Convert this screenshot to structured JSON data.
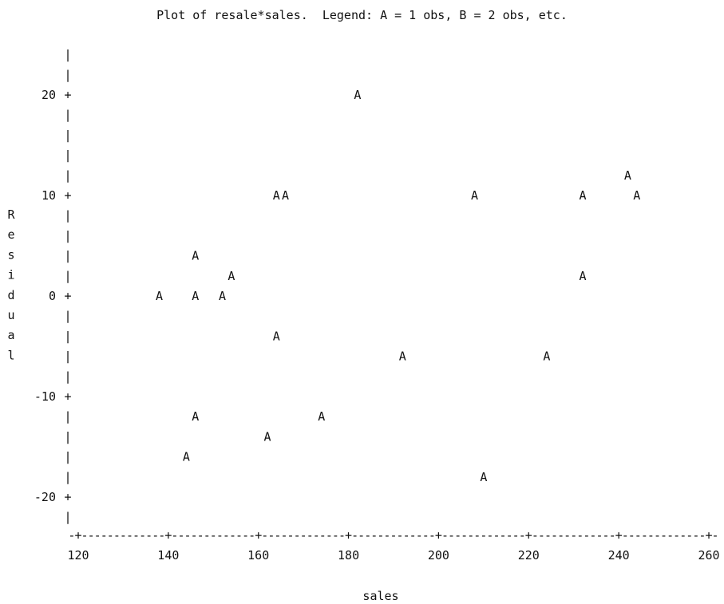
{
  "chart_data": {
    "type": "scatter",
    "title": "Plot of resale*sales.  Legend: A = 1 obs, B = 2 obs, etc.",
    "xlabel": "sales",
    "ylabel": "Residual",
    "xlim": [
      120,
      260
    ],
    "ylim": [
      -20,
      20
    ],
    "x_ticks": [
      120,
      140,
      160,
      180,
      200,
      220,
      240,
      260
    ],
    "y_ticks": [
      -20,
      -10,
      0,
      10,
      20
    ],
    "marker": "A",
    "points": [
      {
        "x": 182,
        "y": 20
      },
      {
        "x": 242,
        "y": 12
      },
      {
        "x": 164,
        "y": 10
      },
      {
        "x": 166,
        "y": 10
      },
      {
        "x": 208,
        "y": 10
      },
      {
        "x": 232,
        "y": 10
      },
      {
        "x": 244,
        "y": 10
      },
      {
        "x": 146,
        "y": 4
      },
      {
        "x": 154,
        "y": 2
      },
      {
        "x": 232,
        "y": 2
      },
      {
        "x": 138,
        "y": 0
      },
      {
        "x": 146,
        "y": 0
      },
      {
        "x": 152,
        "y": 0
      },
      {
        "x": 164,
        "y": -4
      },
      {
        "x": 192,
        "y": -6
      },
      {
        "x": 224,
        "y": -6
      },
      {
        "x": 146,
        "y": -12
      },
      {
        "x": 174,
        "y": -12
      },
      {
        "x": 162,
        "y": -14
      },
      {
        "x": 144,
        "y": -16
      },
      {
        "x": 210,
        "y": -18
      }
    ]
  }
}
